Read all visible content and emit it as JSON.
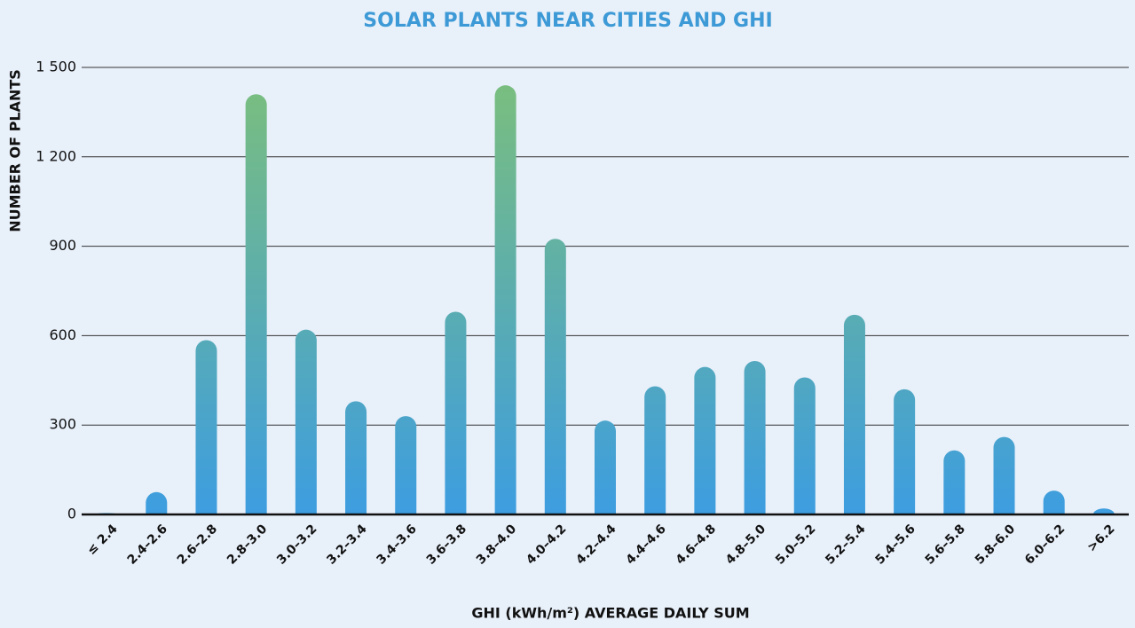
{
  "chart_data": {
    "type": "bar",
    "title": "SOLAR PLANTS NEAR CITIES AND GHI",
    "x_label": "GHI (kWh/m²) AVERAGE DAILY SUM",
    "y_label": "NUMBER OF PLANTS",
    "categories": [
      "≤ 2.4",
      "2.4–2.6",
      "2.6–2.8",
      "2.8–3.0",
      "3.0–3.2",
      "3.2–3.4",
      "3.4–3.6",
      "3.6–3.8",
      "3.8–4.0",
      "4.0–4.2",
      "4.2–4.4",
      "4.4–4.6",
      "4.6–4.8",
      "4.8–5.0",
      "5.0–5.2",
      "5.2–5.4",
      "5.4–5.6",
      "5.6–5.8",
      "5.8–6.0",
      "6.0–6.2",
      ">6.2"
    ],
    "values": [
      5,
      75,
      585,
      1410,
      620,
      380,
      330,
      680,
      1440,
      925,
      315,
      430,
      495,
      515,
      460,
      670,
      420,
      215,
      260,
      80,
      20
    ],
    "colors": [
      "#7cbf7b",
      "#3d9de0"
    ],
    "ylim": [
      0,
      1500
    ],
    "yticks": [
      0,
      300,
      600,
      900,
      {
        "value": 1200,
        "label": "1 200"
      },
      {
        "value": 1500,
        "label": "1 500"
      }
    ],
    "grid": true
  }
}
